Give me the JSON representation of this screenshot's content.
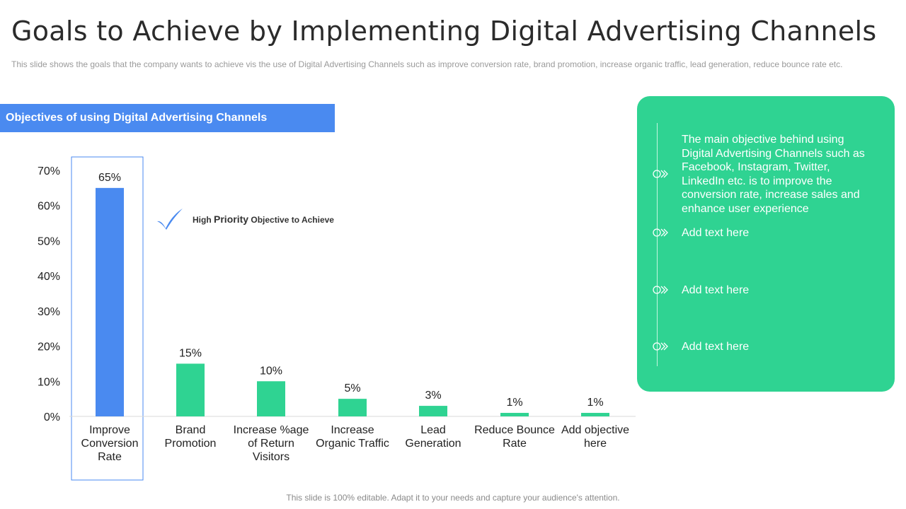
{
  "title": "Goals to Achieve by Implementing Digital Advertising Channels",
  "subtitle": "This slide shows the goals that the company wants to achieve vis the use of Digital Advertising Channels such as improve conversion rate, brand promotion, increase organic traffic, lead generation, reduce bounce rate etc.",
  "section_header": "Objectives of using Digital Advertising Channels",
  "priority_note": {
    "prefix": "High",
    "emphasis": "Priority",
    "suffix": "Objective to Achieve"
  },
  "panel": {
    "items": [
      "The main objective behind using Digital Advertising Channels such as Facebook, Instagram, Twitter, LinkedIn etc. is to improve the conversion rate, increase sales and enhance user experience",
      "Add text here",
      "Add text here",
      "Add text here"
    ]
  },
  "footer": "This slide is 100% editable. Adapt it to your needs and capture your audience's attention.",
  "colors": {
    "highlight_bar": "#4a8af0",
    "bar": "#2fd392",
    "panel": "#2fd392",
    "header": "#4a8af0"
  },
  "chart_data": {
    "type": "bar",
    "categories": [
      [
        "Improve",
        "Conversion",
        "Rate"
      ],
      [
        "Brand",
        "Promotion"
      ],
      [
        "Increase %age",
        "of Return",
        "Visitors"
      ],
      [
        "Increase",
        "Organic Traffic"
      ],
      [
        "Lead",
        "Generation"
      ],
      [
        "Reduce Bounce",
        "Rate"
      ],
      [
        "Add objective",
        "here"
      ]
    ],
    "values": [
      65,
      15,
      10,
      5,
      3,
      1,
      1
    ],
    "data_labels": [
      "65%",
      "15%",
      "10%",
      "5%",
      "3%",
      "1%",
      "1%"
    ],
    "y_ticks": [
      "0%",
      "10%",
      "20%",
      "30%",
      "40%",
      "50%",
      "60%",
      "70%"
    ],
    "ylim": [
      0,
      70
    ],
    "highlighted_index": 0,
    "grid": false
  }
}
